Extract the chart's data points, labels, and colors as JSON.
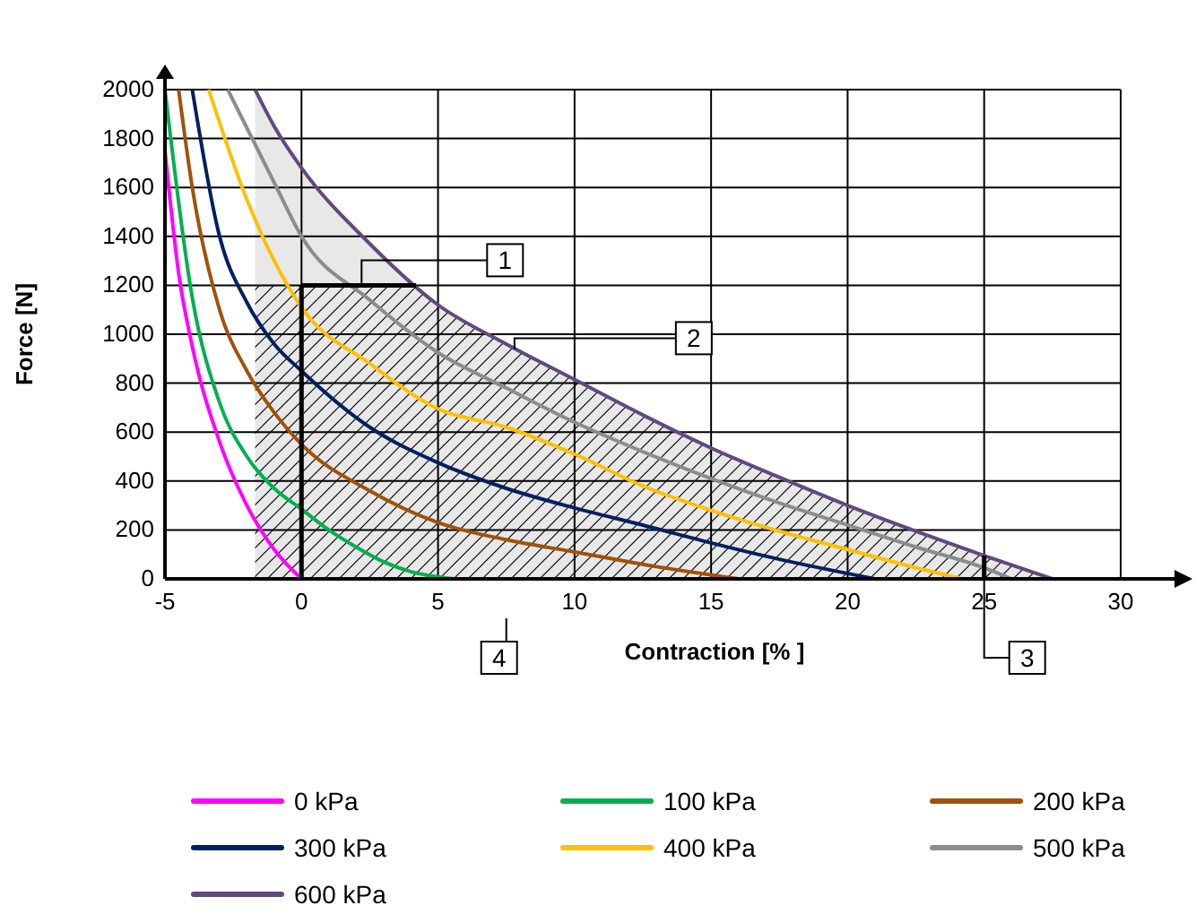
{
  "chart_data": {
    "type": "line",
    "xlabel": "Contraction  [% ]",
    "ylabel": "Force [N]",
    "xlim": [
      -5,
      30
    ],
    "xticks": [
      -5,
      0,
      5,
      10,
      15,
      20,
      25,
      30
    ],
    "ylim": [
      0,
      2000
    ],
    "yticks": [
      0,
      200,
      400,
      600,
      800,
      1000,
      1200,
      1400,
      1600,
      1800,
      2000
    ],
    "grid": true,
    "legend": "bottom",
    "marker": "none",
    "line_style": "solid",
    "series": [
      {
        "name": "0 kPa",
        "color": "#ff00ff",
        "x": [
          -5,
          -4.5,
          -4,
          -3,
          -2,
          -1,
          0
        ],
        "values": [
          1750,
          1250,
          950,
          560,
          300,
          120,
          0
        ]
      },
      {
        "name": "100 kPa",
        "color": "#00b050",
        "x": [
          -5,
          -4,
          -3,
          -2,
          -1,
          0,
          1,
          2,
          3,
          4,
          5.6
        ],
        "values": [
          2000,
          1150,
          720,
          500,
          370,
          285,
          200,
          130,
          70,
          30,
          0
        ]
      },
      {
        "name": "200 kPa",
        "color": "#a0520a",
        "x": [
          -4.5,
          -4,
          -3,
          -2,
          -1,
          0,
          2.5,
          5,
          7.5,
          10,
          13,
          16
        ],
        "values": [
          2000,
          1600,
          1100,
          850,
          680,
          550,
          360,
          230,
          160,
          110,
          50,
          0
        ]
      },
      {
        "name": "300 kPa",
        "color": "#002060",
        "x": [
          -4,
          -3,
          -2,
          -1,
          0,
          2.5,
          5,
          7.5,
          10,
          12.5,
          15,
          17.5,
          21
        ],
        "values": [
          2000,
          1400,
          1130,
          960,
          850,
          620,
          475,
          370,
          290,
          220,
          147,
          80,
          0
        ]
      },
      {
        "name": "400 kPa",
        "color": "#ffc000",
        "x": [
          -3.4,
          -2,
          -1,
          0,
          2.5,
          5,
          7.5,
          10,
          12.5,
          15,
          17.5,
          20,
          22,
          24.2
        ],
        "values": [
          2000,
          1550,
          1300,
          1110,
          880,
          695,
          620,
          510,
          380,
          280,
          195,
          120,
          60,
          0
        ]
      },
      {
        "name": "500 kPa",
        "color": "#8c8c8c",
        "x": [
          -2.7,
          -1,
          0,
          2.5,
          5,
          7.5,
          10,
          12.5,
          15,
          17.5,
          20,
          22.5,
          25,
          26
        ],
        "values": [
          2000,
          1620,
          1400,
          1140,
          925,
          780,
          640,
          520,
          410,
          310,
          220,
          130,
          45,
          0
        ]
      },
      {
        "name": "600 kPa",
        "color": "#604a7b",
        "x": [
          -1.7,
          -1,
          0,
          2.5,
          5,
          7.5,
          10,
          12.5,
          15,
          17.5,
          20,
          22.5,
          25,
          27.5
        ],
        "values": [
          2000,
          1850,
          1680,
          1370,
          1120,
          960,
          815,
          670,
          535,
          415,
          300,
          195,
          95,
          0
        ]
      }
    ],
    "bands": [
      {
        "axis": "x",
        "from": -4,
        "to": 27.5,
        "color": "#e8e8e8"
      },
      {
        "axis": "x",
        "from": -3,
        "to": 27.5,
        "color": "#000000"
      }
    ],
    "ref_lines": [
      {
        "axis": "x",
        "value": 0
      },
      {
        "axis": "y",
        "value": 1200
      }
    ],
    "annotations": [
      {
        "text": "1",
        "x": 2.2,
        "y": 1200
      },
      {
        "text": "2",
        "x": 7.8,
        "y": 940
      },
      {
        "text": "3",
        "x": 25,
        "y": 95
      },
      {
        "text": "4",
        "x": 7.5,
        "y": 0
      }
    ]
  }
}
